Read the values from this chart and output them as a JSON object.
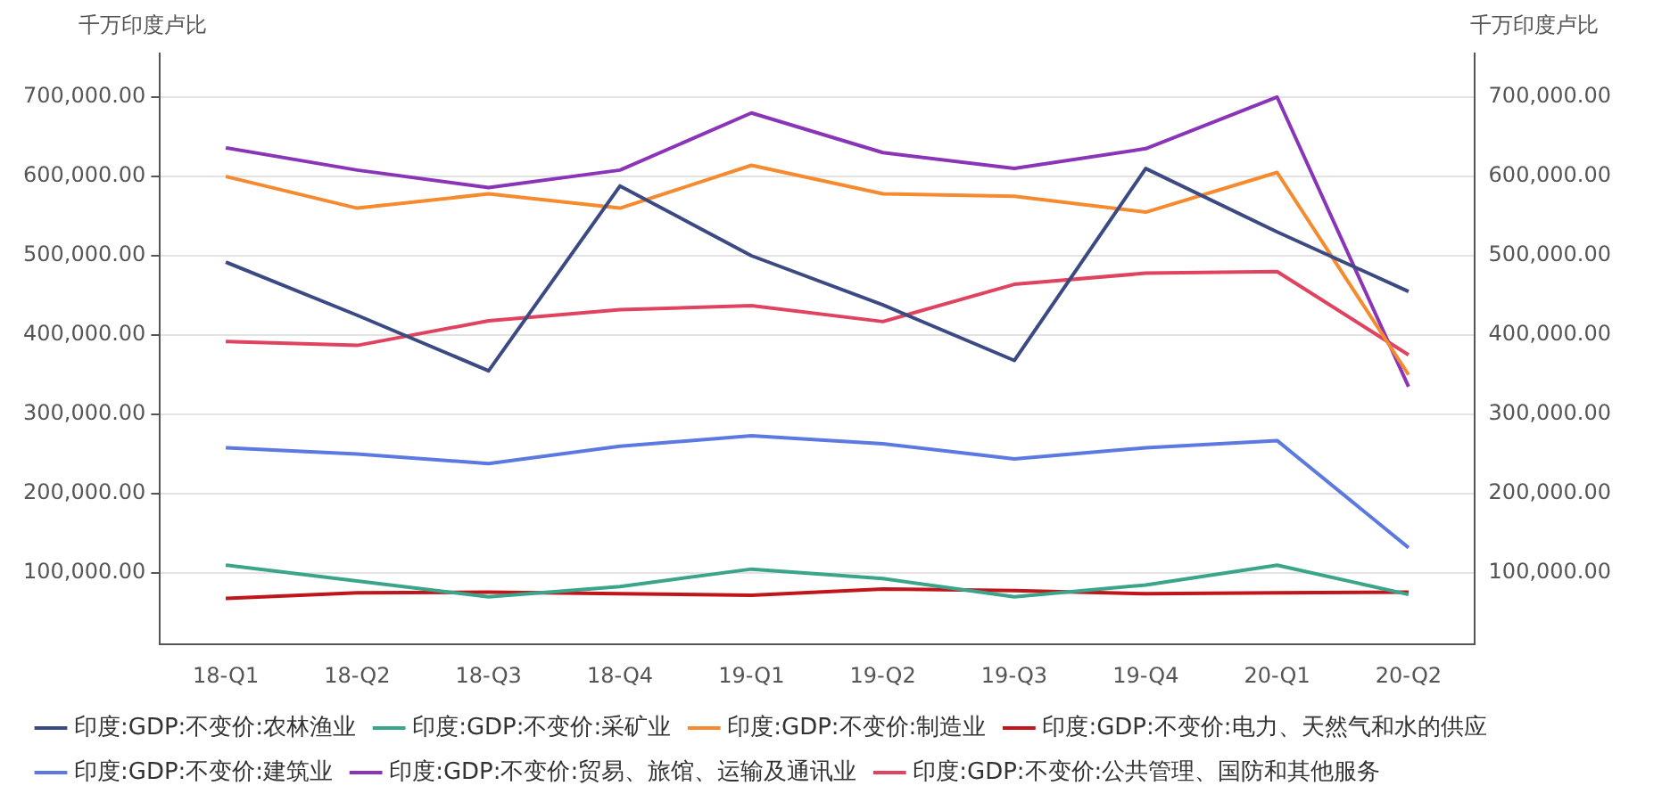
{
  "chart_data": {
    "type": "line",
    "ylabel": "千万印度卢比",
    "y2label": "千万印度卢比",
    "categories": [
      "18-Q1",
      "18-Q2",
      "18-Q3",
      "18-Q4",
      "19-Q1",
      "19-Q2",
      "19-Q3",
      "19-Q4",
      "20-Q1",
      "20-Q2"
    ],
    "series": [
      {
        "name": "印度:GDP:不变价:农林渔业",
        "color": "#3b4a82",
        "values": [
          492000,
          425000,
          355000,
          588000,
          500000,
          438000,
          368000,
          610000,
          530000,
          455000
        ]
      },
      {
        "name": "印度:GDP:不变价:采矿业",
        "color": "#3ba58a",
        "values": [
          110000,
          90000,
          70000,
          83000,
          105000,
          93000,
          70000,
          85000,
          110000,
          73000
        ]
      },
      {
        "name": "印度:GDP:不变价:制造业",
        "color": "#f58a2e",
        "values": [
          600000,
          560000,
          578000,
          560000,
          614000,
          578000,
          575000,
          555000,
          605000,
          350000
        ]
      },
      {
        "name": "印度:GDP:不变价:电力、天然气和水的供应",
        "color": "#c0151b",
        "values": [
          68000,
          75000,
          76000,
          74000,
          72000,
          80000,
          78000,
          74000,
          75000,
          76000
        ]
      },
      {
        "name": "印度:GDP:不变价:建筑业",
        "color": "#5b79e0",
        "values": [
          258000,
          250000,
          238000,
          260000,
          273000,
          263000,
          244000,
          258000,
          267000,
          132000
        ]
      },
      {
        "name": "印度:GDP:不变价:贸易、旅馆、运输及通讯业",
        "color": "#8a35b8",
        "values": [
          636000,
          608000,
          586000,
          608000,
          680000,
          630000,
          610000,
          635000,
          700000,
          335000
        ]
      },
      {
        "name": "印度:GDP:不变价:公共管理、国防和其他服务",
        "color": "#e0435f",
        "values": [
          392000,
          387000,
          418000,
          432000,
          437000,
          417000,
          464000,
          478000,
          480000,
          375000
        ]
      }
    ],
    "ylim": [
      10000,
      755000
    ],
    "yticks": [
      {
        "value": 100000,
        "label": "100,000.00"
      },
      {
        "value": 200000,
        "label": "200,000.00"
      },
      {
        "value": 300000,
        "label": "300,000.00"
      },
      {
        "value": 400000,
        "label": "400,000.00"
      },
      {
        "value": 500000,
        "label": "500,000.00"
      },
      {
        "value": 600000,
        "label": "600,000.00"
      },
      {
        "value": 700000,
        "label": "700,000.00"
      }
    ],
    "y2lim": [
      10000,
      755000
    ],
    "y2ticks": [
      {
        "value": 100000,
        "label": "100,000.00"
      },
      {
        "value": 200000,
        "label": "200,000.00"
      },
      {
        "value": 300000,
        "label": "300,000.00"
      },
      {
        "value": 400000,
        "label": "400,000.00"
      },
      {
        "value": 500000,
        "label": "500,000.00"
      },
      {
        "value": 600000,
        "label": "600,000.00"
      },
      {
        "value": 700000,
        "label": "700,000.00"
      }
    ],
    "grid": "y",
    "legend": "bottom",
    "marker": "none",
    "line_style": "solid"
  }
}
